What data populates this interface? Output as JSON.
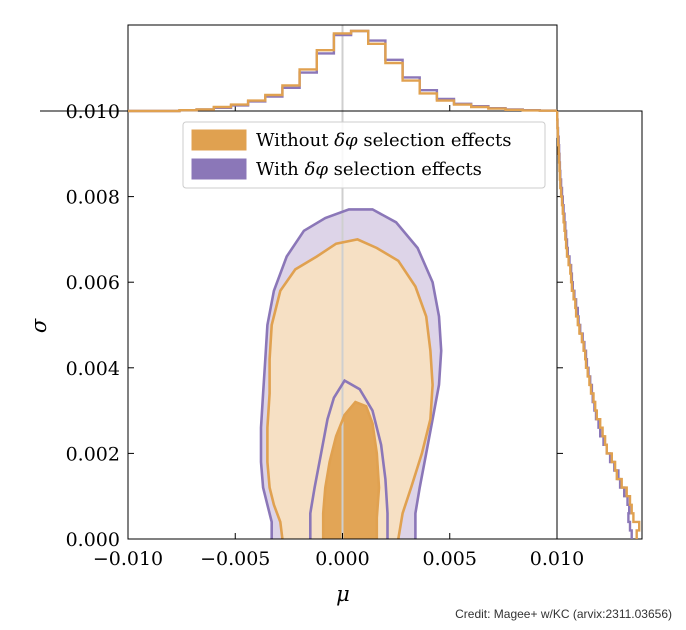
{
  "colors": {
    "without": "#e0a150",
    "without_fill_light": "#f6e0c4",
    "with": "#8b77b8",
    "with_fill_light": "#ddd4e8",
    "vline": "#cfcfcf"
  },
  "credit": "Credit: Magee+ w/KC (arvix:2311.03656)",
  "chart_data": {
    "type": "corner (2D contour + marginal histograms)",
    "xlabel": "μ",
    "ylabel": "σ",
    "xlim": [
      -0.01,
      0.01
    ],
    "ylim": [
      0.0,
      0.01
    ],
    "x_ticks": [
      "−0.010",
      "−0.005",
      "0.000",
      "0.005",
      "0.010"
    ],
    "x_tick_values": [
      -0.01,
      -0.005,
      0.0,
      0.005,
      0.01
    ],
    "y_ticks": [
      "0.000",
      "0.002",
      "0.004",
      "0.006",
      "0.008",
      "0.010"
    ],
    "y_tick_values": [
      0.0,
      0.002,
      0.004,
      0.006,
      0.008,
      0.01
    ],
    "vertical_line_x": 0.0,
    "legend": {
      "placement": "upper-left",
      "entries": [
        {
          "series": "without",
          "pre": "Without ",
          "math": "δφ",
          "post": " selection effects"
        },
        {
          "series": "with",
          "pre": "With ",
          "math": "δφ",
          "post": " selection effects"
        }
      ]
    },
    "contours": [
      {
        "series": "with",
        "level": "outer",
        "points": [
          [
            -0.0033,
            0
          ],
          [
            -0.0033,
            0.0004
          ],
          [
            -0.0035,
            0.0008
          ],
          [
            -0.0037,
            0.0012
          ],
          [
            -0.0038,
            0.0018
          ],
          [
            -0.0038,
            0.0026
          ],
          [
            -0.0037,
            0.0034
          ],
          [
            -0.0036,
            0.0042
          ],
          [
            -0.0035,
            0.005
          ],
          [
            -0.0032,
            0.0058
          ],
          [
            -0.0026,
            0.0066
          ],
          [
            -0.0018,
            0.0072
          ],
          [
            -0.0008,
            0.0075
          ],
          [
            0.0003,
            0.0077
          ],
          [
            0.0014,
            0.0077
          ],
          [
            0.0025,
            0.0074
          ],
          [
            0.0035,
            0.0068
          ],
          [
            0.0042,
            0.006
          ],
          [
            0.0045,
            0.0052
          ],
          [
            0.0046,
            0.0044
          ],
          [
            0.0045,
            0.0036
          ],
          [
            0.0042,
            0.0028
          ],
          [
            0.0039,
            0.002
          ],
          [
            0.0036,
            0.0012
          ],
          [
            0.0034,
            0.0006
          ],
          [
            0.0034,
            0
          ]
        ]
      },
      {
        "series": "without",
        "level": "outer",
        "points": [
          [
            -0.0028,
            0
          ],
          [
            -0.0029,
            0.0004
          ],
          [
            -0.0032,
            0.0008
          ],
          [
            -0.0034,
            0.0012
          ],
          [
            -0.0035,
            0.0018
          ],
          [
            -0.0035,
            0.0026
          ],
          [
            -0.0034,
            0.0034
          ],
          [
            -0.0034,
            0.0042
          ],
          [
            -0.0033,
            0.005
          ],
          [
            -0.0029,
            0.0058
          ],
          [
            -0.0022,
            0.0063
          ],
          [
            -0.0012,
            0.0066
          ],
          [
            -0.0003,
            0.0069
          ],
          [
            0.0007,
            0.007
          ],
          [
            0.0016,
            0.0068
          ],
          [
            0.0026,
            0.0065
          ],
          [
            0.0034,
            0.0059
          ],
          [
            0.0039,
            0.0052
          ],
          [
            0.0041,
            0.0044
          ],
          [
            0.0042,
            0.0036
          ],
          [
            0.0041,
            0.0028
          ],
          [
            0.0037,
            0.002
          ],
          [
            0.0032,
            0.0012
          ],
          [
            0.0028,
            0.0006
          ],
          [
            0.0026,
            0
          ]
        ]
      },
      {
        "series": "with",
        "level": "inner",
        "points": [
          [
            -0.0015,
            0
          ],
          [
            -0.0015,
            0.0006
          ],
          [
            -0.0013,
            0.0012
          ],
          [
            -0.001,
            0.002
          ],
          [
            -0.0007,
            0.0028
          ],
          [
            -0.0004,
            0.0033
          ],
          [
            0.0001,
            0.0037
          ],
          [
            0.0008,
            0.0035
          ],
          [
            0.0014,
            0.003
          ],
          [
            0.0018,
            0.0022
          ],
          [
            0.002,
            0.0014
          ],
          [
            0.0021,
            0.0006
          ],
          [
            0.0021,
            0
          ]
        ]
      },
      {
        "series": "without",
        "level": "inner",
        "points": [
          [
            -0.0009,
            0
          ],
          [
            -0.0009,
            0.0006
          ],
          [
            -0.0008,
            0.0012
          ],
          [
            -0.0006,
            0.0018
          ],
          [
            -0.0003,
            0.0024
          ],
          [
            0.0001,
            0.0029
          ],
          [
            0.0006,
            0.0032
          ],
          [
            0.0011,
            0.0031
          ],
          [
            0.0014,
            0.0027
          ],
          [
            0.0016,
            0.002
          ],
          [
            0.0017,
            0.0012
          ],
          [
            0.0016,
            0.0005
          ],
          [
            0.0016,
            0
          ]
        ]
      }
    ],
    "marginal_mu": {
      "bin_edges": [
        -0.01,
        -0.0092,
        -0.0084,
        -0.0076,
        -0.0068,
        -0.006,
        -0.0052,
        -0.0044,
        -0.0036,
        -0.0028,
        -0.002,
        -0.0012,
        -0.0004,
        0.0004,
        0.0012,
        0.002,
        0.0028,
        0.0036,
        0.0044,
        0.0052,
        0.006,
        0.0068,
        0.0076,
        0.0084,
        0.0092,
        0.01
      ],
      "series": [
        {
          "name": "without",
          "values": [
            0,
            0,
            0,
            0.01,
            0.02,
            0.05,
            0.08,
            0.13,
            0.2,
            0.32,
            0.52,
            0.76,
            0.97,
            1.0,
            0.84,
            0.6,
            0.38,
            0.22,
            0.13,
            0.08,
            0.05,
            0.03,
            0.015,
            0.008,
            0.004
          ]
        },
        {
          "name": "with",
          "values": [
            0,
            0,
            0,
            0.01,
            0.02,
            0.04,
            0.07,
            0.12,
            0.18,
            0.29,
            0.48,
            0.72,
            0.95,
            1.0,
            0.88,
            0.64,
            0.42,
            0.26,
            0.15,
            0.09,
            0.06,
            0.035,
            0.02,
            0.01,
            0.005
          ]
        }
      ]
    },
    "marginal_sigma": {
      "bin_edges": [
        0,
        0.0002,
        0.0004,
        0.0006,
        0.0008,
        0.001,
        0.0012,
        0.0014,
        0.0016,
        0.0018,
        0.002,
        0.0022,
        0.0024,
        0.0026,
        0.0028,
        0.003,
        0.0032,
        0.0034,
        0.0036,
        0.0038,
        0.004,
        0.0042,
        0.0044,
        0.0046,
        0.0048,
        0.005,
        0.0052,
        0.0054,
        0.0056,
        0.0058,
        0.006,
        0.0062,
        0.0064,
        0.0066,
        0.0068,
        0.007,
        0.0072,
        0.0074,
        0.0076,
        0.0078,
        0.008,
        0.0082,
        0.0084,
        0.0086,
        0.0088,
        0.009,
        0.0092,
        0.0094,
        0.0096,
        0.0098,
        0.01
      ],
      "series": [
        {
          "name": "without",
          "values": [
            0.96,
            0.99,
            0.92,
            0.9,
            0.88,
            0.84,
            0.78,
            0.72,
            0.7,
            0.66,
            0.6,
            0.58,
            0.55,
            0.52,
            0.48,
            0.46,
            0.44,
            0.41,
            0.39,
            0.37,
            0.35,
            0.34,
            0.32,
            0.3,
            0.27,
            0.25,
            0.23,
            0.22,
            0.2,
            0.18,
            0.17,
            0.16,
            0.14,
            0.12,
            0.11,
            0.1,
            0.09,
            0.08,
            0.07,
            0.06,
            0.05,
            0.04,
            0.035,
            0.03,
            0.025,
            0.02,
            0.015,
            0.01,
            0.005,
            0.002
          ]
        },
        {
          "name": "with",
          "values": [
            0.9,
            0.88,
            0.86,
            0.87,
            0.85,
            0.81,
            0.76,
            0.74,
            0.69,
            0.64,
            0.6,
            0.56,
            0.52,
            0.5,
            0.47,
            0.45,
            0.43,
            0.42,
            0.4,
            0.38,
            0.36,
            0.35,
            0.33,
            0.31,
            0.28,
            0.26,
            0.25,
            0.23,
            0.21,
            0.19,
            0.18,
            0.17,
            0.15,
            0.13,
            0.12,
            0.11,
            0.1,
            0.09,
            0.08,
            0.07,
            0.06,
            0.05,
            0.04,
            0.035,
            0.03,
            0.025,
            0.02,
            0.012,
            0.006,
            0.002
          ]
        }
      ]
    }
  }
}
